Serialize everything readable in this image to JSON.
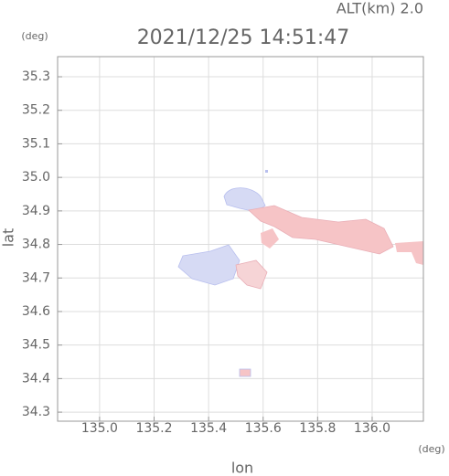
{
  "chart_data": {
    "type": "map",
    "title": "2021/12/25 14:51:47",
    "subtitle": "ALT(km) 2.0",
    "x_label": "lon",
    "x_unit": "(deg)",
    "y_label": "lat",
    "y_unit": "(deg)",
    "xlim": [
      134.846,
      136.188
    ],
    "ylim": [
      34.273,
      35.36
    ],
    "xticks": [
      {
        "value": 135,
        "label": "135.0"
      },
      135.2,
      135.4,
      135.6,
      135.8,
      {
        "value": 136,
        "label": "136.0"
      }
    ],
    "yticks": [
      34.3,
      34.4,
      34.5,
      34.6,
      34.7,
      34.8,
      34.9,
      {
        "value": 35,
        "label": "35.0"
      },
      35.1,
      35.2,
      35.3
    ],
    "grid": true
  }
}
